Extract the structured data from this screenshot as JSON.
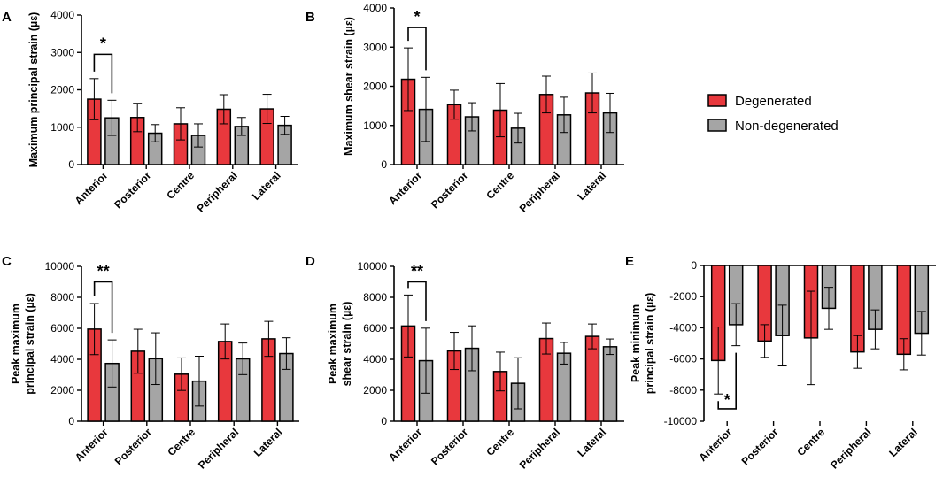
{
  "colors": {
    "degenerated": "#e8383d",
    "non_degenerated": "#a5a5a5"
  },
  "legend": [
    {
      "name": "Degenerated",
      "color": "#e8383d"
    },
    {
      "name": "Non-degenerated",
      "color": "#a5a5a5"
    }
  ],
  "chart_data": [
    {
      "id": "A",
      "panel_label": "A",
      "type": "bar",
      "ylabel": [
        "Maximum principal strain (µε)"
      ],
      "ylim": [
        0,
        4000
      ],
      "yticks": [
        0,
        1000,
        2000,
        3000,
        4000
      ],
      "categories": [
        "Anterior",
        "Posterior",
        "Centre",
        "Peripheral",
        "Lateral"
      ],
      "series": [
        {
          "name": "Degenerated",
          "values": [
            1750,
            1260,
            1090,
            1480,
            1490
          ],
          "errors": [
            550,
            380,
            430,
            390,
            390
          ]
        },
        {
          "name": "Non-degenerated",
          "values": [
            1250,
            840,
            780,
            1020,
            1050
          ],
          "errors": [
            470,
            230,
            310,
            240,
            240
          ]
        }
      ],
      "significance": [
        {
          "label": "*",
          "category": "Anterior",
          "value": 2950
        }
      ]
    },
    {
      "id": "B",
      "panel_label": "B",
      "type": "bar",
      "ylabel": [
        "Maximum shear strain (µε)"
      ],
      "ylim": [
        0,
        4000
      ],
      "yticks": [
        0,
        1000,
        2000,
        3000,
        4000
      ],
      "categories": [
        "Anterior",
        "Posterior",
        "Centre",
        "Peripheral",
        "Lateral"
      ],
      "series": [
        {
          "name": "Degenerated",
          "values": [
            2180,
            1530,
            1390,
            1790,
            1830
          ],
          "errors": [
            800,
            370,
            680,
            470,
            510
          ]
        },
        {
          "name": "Non-degenerated",
          "values": [
            1410,
            1220,
            930,
            1270,
            1320
          ],
          "errors": [
            820,
            360,
            380,
            450,
            500
          ]
        }
      ],
      "significance": [
        {
          "label": "*",
          "category": "Anterior",
          "value": 3500
        }
      ]
    },
    {
      "id": "C",
      "panel_label": "C",
      "type": "bar",
      "ylabel": [
        "Peak maximum",
        "principal strain (µε)"
      ],
      "ylim": [
        0,
        10000
      ],
      "yticks": [
        0,
        2000,
        4000,
        6000,
        8000,
        10000
      ],
      "categories": [
        "Anterior",
        "Posterior",
        "Centre",
        "Peripheral",
        "Lateral"
      ],
      "series": [
        {
          "name": "Degenerated",
          "values": [
            5950,
            4520,
            3040,
            5150,
            5320
          ],
          "errors": [
            1650,
            1420,
            1050,
            1130,
            1130
          ]
        },
        {
          "name": "Non-degenerated",
          "values": [
            3730,
            4040,
            2590,
            4030,
            4370
          ],
          "errors": [
            1520,
            1670,
            1610,
            1020,
            1020
          ]
        }
      ],
      "significance": [
        {
          "label": "**",
          "category": "Anterior",
          "value": 9000
        }
      ]
    },
    {
      "id": "D",
      "panel_label": "D",
      "type": "bar",
      "ylabel": [
        "Peak maximum",
        "shear strain (µε)"
      ],
      "ylim": [
        0,
        10000
      ],
      "yticks": [
        0,
        2000,
        4000,
        6000,
        8000,
        10000
      ],
      "categories": [
        "Anterior",
        "Posterior",
        "Centre",
        "Peripheral",
        "Lateral"
      ],
      "series": [
        {
          "name": "Degenerated",
          "values": [
            6150,
            4540,
            3210,
            5340,
            5480
          ],
          "errors": [
            2000,
            1200,
            1250,
            1000,
            800
          ]
        },
        {
          "name": "Non-degenerated",
          "values": [
            3910,
            4710,
            2450,
            4390,
            4810
          ],
          "errors": [
            2100,
            1450,
            1650,
            700,
            500
          ]
        }
      ],
      "significance": [
        {
          "label": "**",
          "category": "Anterior",
          "value": 9000
        }
      ]
    },
    {
      "id": "E",
      "panel_label": "E",
      "type": "bar",
      "ylabel": [
        "Peak minimum",
        "principal strain (µε)"
      ],
      "ylim": [
        -10000,
        0
      ],
      "yticks": [
        0,
        -2000,
        -4000,
        -6000,
        -8000,
        -10000
      ],
      "categories": [
        "Anterior",
        "Posterior",
        "Centre",
        "Peripheral",
        "Lateral"
      ],
      "series": [
        {
          "name": "Degenerated",
          "values": [
            -6100,
            -4850,
            -4650,
            -5550,
            -5700
          ],
          "errors": [
            2150,
            1050,
            3000,
            1050,
            1000
          ]
        },
        {
          "name": "Non-degenerated",
          "values": [
            -3800,
            -4500,
            -2750,
            -4100,
            -4350
          ],
          "errors": [
            1350,
            1950,
            1350,
            1250,
            1400
          ]
        }
      ],
      "significance": [
        {
          "label": "*",
          "category": "Anterior",
          "value": -9200
        }
      ]
    }
  ]
}
